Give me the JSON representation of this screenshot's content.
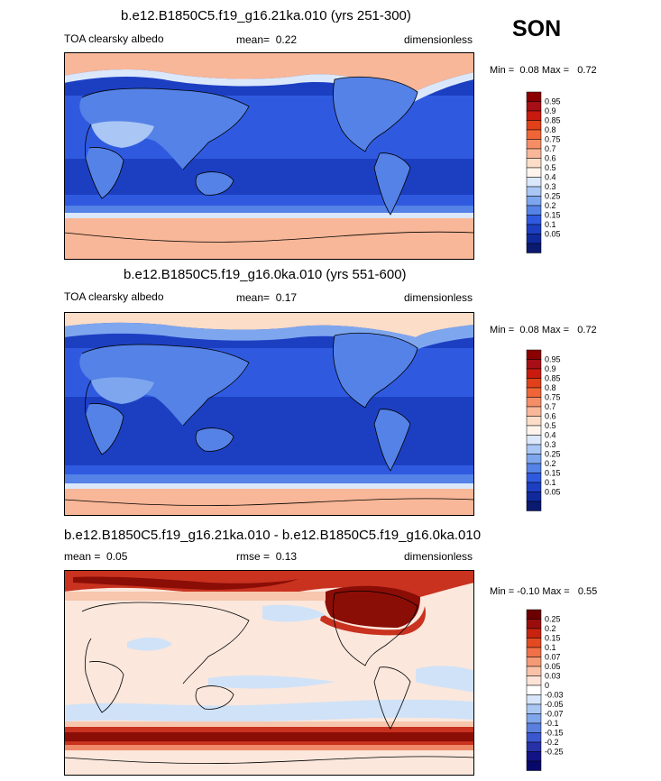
{
  "season": "SON",
  "colors": {
    "ocean_deep": "#1c3fc2",
    "ocean_mid": "#2f5ae0",
    "ocean_light": "#4f80ec",
    "land_pale": "#a9c6f5",
    "ice_pale": "#f6d3c4",
    "ice_peach": "#f2b49c",
    "diff_zero": "#fbe7dc",
    "diff_light": "#f7c6ad",
    "diff_mid": "#ee8a6a",
    "diff_red": "#c8321f",
    "diff_dark": "#8a0d06",
    "diff_blue": "#cfe2f8"
  },
  "chart_data": [
    {
      "type": "heatmap",
      "title": "b.e12.B1850C5.f19_g16.21ka.010 (yrs 251-300)",
      "left_label": "TOA clearsky albedo",
      "mean_label": "mean=",
      "mean": "0.22",
      "units": "dimensionless",
      "min_label": "Min =",
      "min": "0.08",
      "max_label": "Max =",
      "max": "0.72",
      "levels": [
        "0.95",
        "0.9",
        "0.85",
        "0.8",
        "0.75",
        "0.7",
        "0.6",
        "0.5",
        "0.4",
        "0.3",
        "0.25",
        "0.2",
        "0.15",
        "0.1",
        "0.05"
      ],
      "level_colors": [
        "#8b0000",
        "#a50f15",
        "#c81a0e",
        "#e0401a",
        "#f06537",
        "#f58d67",
        "#f8b798",
        "#fbddc8",
        "#fef4ec",
        "#dbe8fb",
        "#a9c6f5",
        "#7ea6ee",
        "#5582e6",
        "#2f5ae0",
        "#1c3fc2",
        "#102a9e",
        "#0a1a6f"
      ]
    },
    {
      "type": "heatmap",
      "title": "b.e12.B1850C5.f19_g16.0ka.010 (yrs 551-600)",
      "left_label": "TOA clearsky albedo",
      "mean_label": "mean=",
      "mean": "0.17",
      "units": "dimensionless",
      "min_label": "Min =",
      "min": "0.08",
      "max_label": "Max =",
      "max": "0.72",
      "levels": [
        "0.95",
        "0.9",
        "0.85",
        "0.8",
        "0.75",
        "0.7",
        "0.6",
        "0.5",
        "0.4",
        "0.3",
        "0.25",
        "0.2",
        "0.15",
        "0.1",
        "0.05"
      ],
      "level_colors": [
        "#8b0000",
        "#a50f15",
        "#c81a0e",
        "#e0401a",
        "#f06537",
        "#f58d67",
        "#f8b798",
        "#fbddc8",
        "#fef4ec",
        "#dbe8fb",
        "#a9c6f5",
        "#7ea6ee",
        "#5582e6",
        "#2f5ae0",
        "#1c3fc2",
        "#102a9e",
        "#0a1a6f"
      ]
    },
    {
      "type": "heatmap",
      "title": "b.e12.B1850C5.f19_g16.21ka.010 - b.e12.B1850C5.f19_g16.0ka.010",
      "mean_label": "mean =",
      "mean": "0.05",
      "rmse_label": "rmse =",
      "rmse": "0.13",
      "units": "dimensionless",
      "min_label": "Min =",
      "min": "-0.10",
      "max_label": "Max =",
      "max": "0.55",
      "levels": [
        "0.25",
        "0.2",
        "0.15",
        "0.1",
        "0.07",
        "0.05",
        "0.03",
        "0",
        "-0.03",
        "-0.05",
        "-0.07",
        "-0.1",
        "-0.15",
        "-0.2",
        "-0.25"
      ],
      "level_colors": [
        "#6b0000",
        "#9b0c0c",
        "#c8230f",
        "#e44a22",
        "#f07048",
        "#f59a77",
        "#f9c2a8",
        "#fde3d5",
        "#ffffff",
        "#d6e5fa",
        "#aac7f3",
        "#7fa5ea",
        "#5a80df",
        "#3a57cf",
        "#2631a8",
        "#121486",
        "#08086a"
      ]
    }
  ]
}
